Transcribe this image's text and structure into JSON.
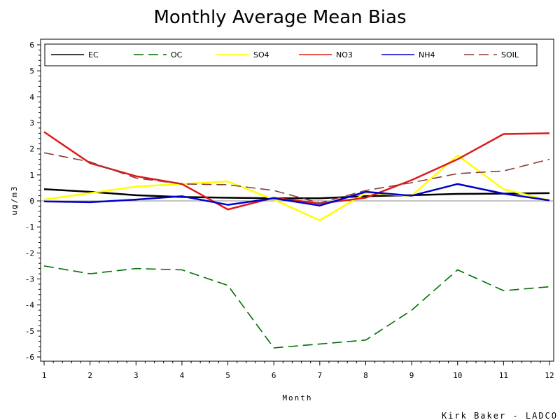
{
  "chart_data": {
    "type": "line",
    "title": "Monthly Average Mean Bias",
    "xlabel": "Month",
    "ylabel": "ug/m3",
    "x": [
      1,
      2,
      3,
      4,
      5,
      6,
      7,
      8,
      9,
      10,
      11,
      12
    ],
    "xlim": [
      1,
      12
    ],
    "ylim": [
      -6,
      6
    ],
    "x_ticks": [
      "1",
      "2",
      "3",
      "4",
      "5",
      "6",
      "7",
      "8",
      "9",
      "10",
      "11",
      "12"
    ],
    "y_ticks": [
      "6",
      "5",
      "4",
      "3",
      "2",
      "1",
      "0",
      "-1",
      "-2",
      "-3",
      "-4",
      "-5",
      "-6"
    ],
    "grid": false,
    "reference_line": 0,
    "legend_position": "top",
    "series": [
      {
        "name": "EC",
        "color": "#000000",
        "dash": "solid",
        "values": [
          0.45,
          0.35,
          0.22,
          0.15,
          0.12,
          0.1,
          0.1,
          0.18,
          0.22,
          0.27,
          0.28,
          0.3
        ]
      },
      {
        "name": "OC",
        "color": "#007000",
        "dash": "dashed",
        "values": [
          -2.5,
          -2.8,
          -2.6,
          -2.65,
          -3.25,
          -5.65,
          -5.5,
          -5.35,
          -4.2,
          -2.65,
          -3.45,
          -3.3
        ]
      },
      {
        "name": "SO4",
        "color": "#ffff00",
        "dash": "solid",
        "values": [
          0.05,
          0.3,
          0.55,
          0.65,
          0.75,
          0.05,
          -0.75,
          0.3,
          0.2,
          1.75,
          0.45,
          0.02
        ]
      },
      {
        "name": "NO3",
        "color": "#dd1a1a",
        "dash": "solid",
        "values": [
          2.65,
          1.45,
          0.95,
          0.65,
          -0.33,
          0.12,
          -0.1,
          0.12,
          0.8,
          1.6,
          2.57,
          2.6
        ]
      },
      {
        "name": "NH4",
        "color": "#0000cc",
        "dash": "solid",
        "values": [
          -0.02,
          -0.05,
          0.05,
          0.18,
          -0.15,
          0.1,
          -0.18,
          0.35,
          0.2,
          0.65,
          0.28,
          0.02
        ]
      },
      {
        "name": "SOIL",
        "color": "#8b3a3a",
        "dash": "dashed",
        "values": [
          1.85,
          1.5,
          0.88,
          0.65,
          0.62,
          0.4,
          -0.08,
          0.4,
          0.7,
          1.05,
          1.15,
          1.6
        ]
      }
    ]
  },
  "credit": "Kirk Baker - LADCO"
}
